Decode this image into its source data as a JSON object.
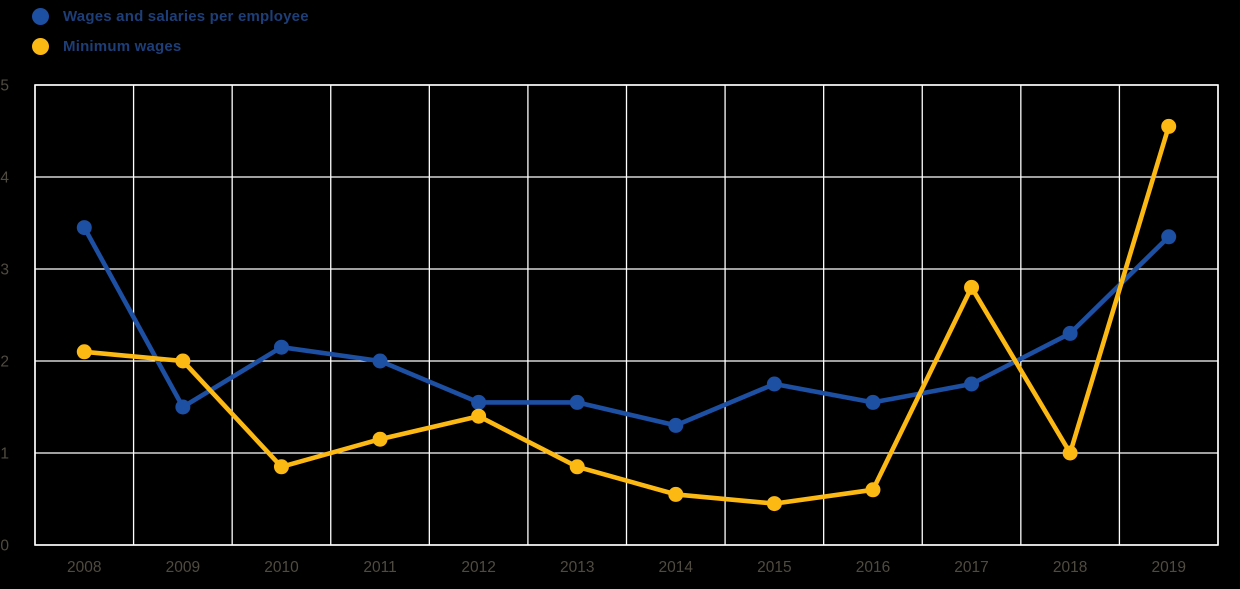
{
  "chart_data": {
    "type": "line",
    "title": "",
    "xlabel": "",
    "ylabel": "",
    "x": [
      "2008",
      "2009",
      "2010",
      "2011",
      "2012",
      "2013",
      "2014",
      "2015",
      "2016",
      "2017",
      "2018",
      "2019"
    ],
    "series": [
      {
        "name": "Wages and salaries per employee",
        "color": "#1d4fa3",
        "values": [
          3.45,
          1.5,
          2.15,
          2.0,
          1.55,
          1.55,
          1.3,
          1.75,
          1.55,
          1.75,
          2.3,
          3.35
        ]
      },
      {
        "name": "Minimum wages",
        "color": "#fdb913",
        "values": [
          2.1,
          2.0,
          0.85,
          1.15,
          1.4,
          0.85,
          0.55,
          0.45,
          0.6,
          2.8,
          1.0,
          4.55
        ]
      }
    ],
    "ylim": [
      0,
      5
    ],
    "yticks": [
      "0",
      "1",
      "2",
      "3",
      "4",
      "5"
    ],
    "grid": true,
    "legend_position": "top-left"
  },
  "legend": {
    "items": [
      {
        "label": "Wages and salaries per employee",
        "color": "#1d4fa3"
      },
      {
        "label": "Minimum wages",
        "color": "#fdb913"
      }
    ]
  },
  "colors": {
    "background": "#000000",
    "grid": "#ffffff",
    "axis_text": "#4f4b40",
    "legend_text": "#1d3e77"
  }
}
